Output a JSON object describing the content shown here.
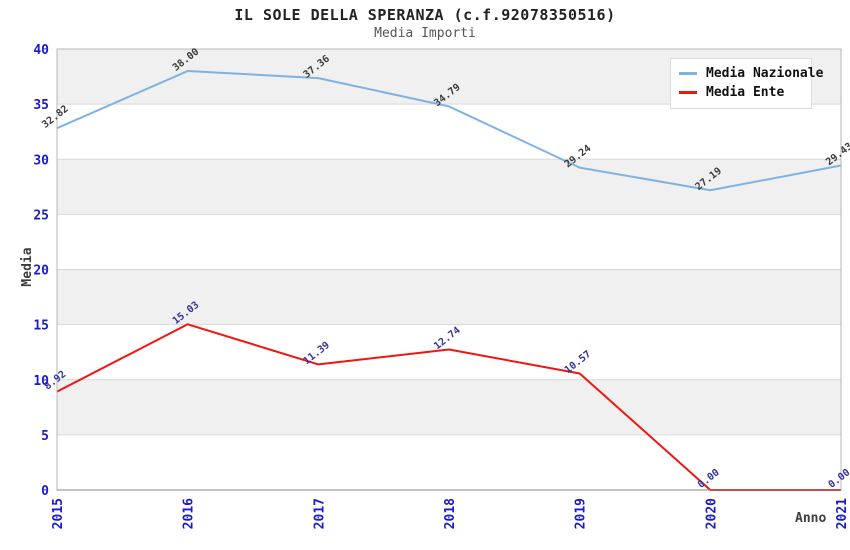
{
  "chart_data": {
    "type": "line",
    "title": "IL SOLE DELLA SPERANZA (c.f.92078350516)",
    "subtitle": "Media Importi",
    "x": [
      "2015",
      "2016",
      "2017",
      "2018",
      "2019",
      "2020",
      "2021"
    ],
    "xlabel": "Anno",
    "ylabel": "Media",
    "ylim": [
      0,
      40
    ],
    "ytick_step": 5,
    "grid": "horizontal-alternating-bands",
    "legend_position": "top-right",
    "series": [
      {
        "name": "Media Nazionale",
        "color": "#7fb2e3",
        "label_color": "#3a3a3a",
        "values": [
          32.82,
          38.0,
          37.36,
          34.79,
          29.24,
          27.19,
          29.43
        ]
      },
      {
        "name": "Media Ente",
        "color": "#f21411",
        "label_color": "#333399",
        "values": [
          8.92,
          15.03,
          11.39,
          12.74,
          10.57,
          0.0,
          0.0
        ]
      }
    ],
    "colors": {
      "tick_label": "#1a1acd",
      "axis_title": "#3f3f3f",
      "band_light": "#ffffff",
      "band_dark": "#f0f0f0",
      "gridline": "#d9d9d9",
      "plot_border": "#b7b7b7",
      "axis_line": "#8a8a8a",
      "legend_bg": "#ffffff",
      "legend_border": "#dcdcdc",
      "title_color": "#222222",
      "subtitle_color": "#555555"
    }
  }
}
